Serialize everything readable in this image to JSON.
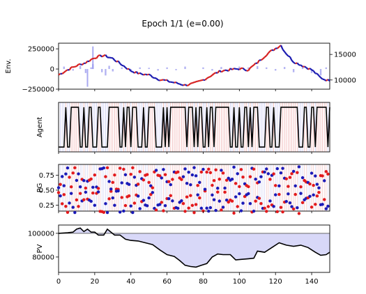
{
  "figure": {
    "title": "Epoch 1/1 (e=0.00)"
  },
  "chart_data": [
    {
      "type": "line",
      "panel": "env",
      "ylabel": "Env.",
      "xlim": [
        0,
        150
      ],
      "ylim": [
        -250000,
        320000
      ],
      "yticks": [
        {
          "v": 250000,
          "label": "250000"
        },
        {
          "v": 0,
          "label": "0"
        },
        {
          "v": -250000,
          "label": "−250000"
        }
      ],
      "secondary_axis": {
        "ylim": [
          8200,
          17200
        ],
        "yticks": [
          {
            "v": 15000,
            "label": "15000"
          },
          {
            "v": 10000,
            "label": "10000"
          }
        ],
        "price_series": [
          {
            "x": 0,
            "y": 11000
          },
          {
            "x": 5,
            "y": 12000
          },
          {
            "x": 10,
            "y": 12800
          },
          {
            "x": 15,
            "y": 13400
          },
          {
            "x": 20,
            "y": 14400
          },
          {
            "x": 25,
            "y": 14800
          },
          {
            "x": 30,
            "y": 14200
          },
          {
            "x": 35,
            "y": 13000
          },
          {
            "x": 40,
            "y": 11800
          },
          {
            "x": 45,
            "y": 11200
          },
          {
            "x": 50,
            "y": 11000
          },
          {
            "x": 55,
            "y": 10200
          },
          {
            "x": 60,
            "y": 9800
          },
          {
            "x": 65,
            "y": 9400
          },
          {
            "x": 70,
            "y": 9000
          },
          {
            "x": 75,
            "y": 9300
          },
          {
            "x": 80,
            "y": 10000
          },
          {
            "x": 85,
            "y": 11000
          },
          {
            "x": 90,
            "y": 11800
          },
          {
            "x": 95,
            "y": 12000
          },
          {
            "x": 100,
            "y": 12200
          },
          {
            "x": 105,
            "y": 12000
          },
          {
            "x": 110,
            "y": 13400
          },
          {
            "x": 115,
            "y": 15000
          },
          {
            "x": 120,
            "y": 16200
          },
          {
            "x": 123,
            "y": 16800
          },
          {
            "x": 125,
            "y": 15600
          },
          {
            "x": 130,
            "y": 13600
          },
          {
            "x": 135,
            "y": 12800
          },
          {
            "x": 140,
            "y": 12000
          },
          {
            "x": 145,
            "y": 10400
          },
          {
            "x": 150,
            "y": 9800
          }
        ]
      },
      "volume_bars": [
        {
          "x": 3,
          "v": 30000
        },
        {
          "x": 8,
          "v": -20000
        },
        {
          "x": 12,
          "v": 40000
        },
        {
          "x": 15,
          "v": -50000
        },
        {
          "x": 18,
          "v": 20000
        },
        {
          "x": 19,
          "v": 60000
        },
        {
          "x": 24,
          "v": -40000
        },
        {
          "x": 26,
          "v": -80000
        },
        {
          "x": 28,
          "v": 40000
        },
        {
          "x": 30,
          "v": -30000
        },
        {
          "x": 35,
          "v": 20000
        },
        {
          "x": 40,
          "v": -30000
        },
        {
          "x": 45,
          "v": 20000
        },
        {
          "x": 50,
          "v": 15000
        },
        {
          "x": 55,
          "v": -20000
        },
        {
          "x": 60,
          "v": 20000
        },
        {
          "x": 65,
          "v": -15000
        },
        {
          "x": 70,
          "v": 30000
        },
        {
          "x": 80,
          "v": 20000
        },
        {
          "x": 85,
          "v": -20000
        },
        {
          "x": 90,
          "v": 25000
        },
        {
          "x": 95,
          "v": 15000
        },
        {
          "x": 100,
          "v": 30000
        },
        {
          "x": 105,
          "v": 20000
        },
        {
          "x": 110,
          "v": 35000
        },
        {
          "x": 115,
          "v": 20000
        },
        {
          "x": 120,
          "v": -20000
        },
        {
          "x": 125,
          "v": 25000
        },
        {
          "x": 130,
          "v": -40000
        },
        {
          "x": 135,
          "v": 30000
        },
        {
          "x": 140,
          "v": -50000
        },
        {
          "x": 145,
          "v": -80000
        },
        {
          "x": 148,
          "v": 20000
        }
      ],
      "tall_bars": [
        {
          "x": 19,
          "v": 280000
        },
        {
          "x": 16,
          "v": -220000
        }
      ]
    },
    {
      "type": "line",
      "panel": "agent",
      "ylabel": "Agent",
      "xlim": [
        0,
        150
      ],
      "ylim": [
        -0.12,
        1.12
      ],
      "actions": [
        0,
        0,
        0,
        0,
        1,
        0,
        0,
        1,
        1,
        1,
        1,
        1,
        0,
        0,
        1,
        0,
        0,
        1,
        1,
        0,
        0,
        0,
        1,
        1,
        0,
        0,
        0,
        0,
        1,
        1,
        1,
        1,
        1,
        1,
        0,
        0,
        1,
        0,
        1,
        1,
        0,
        1,
        1,
        1,
        0,
        0,
        0,
        1,
        0,
        0,
        1,
        1,
        1,
        1,
        0,
        0,
        0,
        0,
        1,
        0,
        1,
        0,
        1,
        1,
        1,
        1,
        1,
        1,
        1,
        1,
        1,
        0,
        1,
        1,
        1,
        0,
        1,
        0,
        1,
        1,
        0,
        0,
        1,
        0,
        1,
        1,
        0,
        1,
        1,
        1,
        1,
        1,
        1,
        1,
        1,
        0,
        0,
        1,
        0,
        0,
        1,
        0,
        0,
        1,
        1,
        0,
        1,
        0,
        1,
        1,
        1,
        0,
        0,
        0,
        0,
        1,
        1,
        0,
        0,
        1,
        0,
        0,
        0,
        1,
        1,
        1,
        1,
        1,
        1,
        1,
        1,
        1,
        1,
        0,
        0,
        0,
        1,
        1,
        0,
        0,
        1,
        1,
        0,
        1,
        1,
        1,
        1,
        1,
        1,
        0,
        1
      ]
    },
    {
      "type": "scatter",
      "panel": "pg",
      "ylabel": "PG",
      "xlim": [
        0,
        150
      ],
      "ylim": [
        0.15,
        0.93
      ],
      "yticks": [
        {
          "v": 0.75,
          "label": "0.75"
        },
        {
          "v": 0.5,
          "label": "0.50"
        },
        {
          "v": 0.25,
          "label": "0.25"
        }
      ],
      "note": "each step shows a red point (p) and a blue point (1-p); values estimated from the plot"
    },
    {
      "type": "area",
      "panel": "pv",
      "ylabel": "PV",
      "xlim": [
        0,
        150
      ],
      "ylim": [
        67000,
        107000
      ],
      "baseline": 100000,
      "yticks": [
        {
          "v": 100000,
          "label": "100000"
        },
        {
          "v": 80000,
          "label": "80000"
        }
      ],
      "xticks": [
        0,
        20,
        40,
        60,
        80,
        100,
        120,
        140
      ],
      "values": [
        {
          "x": 0,
          "y": 100000
        },
        {
          "x": 5,
          "y": 100500
        },
        {
          "x": 8,
          "y": 101000
        },
        {
          "x": 10,
          "y": 103500
        },
        {
          "x": 12,
          "y": 104500
        },
        {
          "x": 14,
          "y": 101500
        },
        {
          "x": 16,
          "y": 103500
        },
        {
          "x": 18,
          "y": 101000
        },
        {
          "x": 20,
          "y": 101000
        },
        {
          "x": 22,
          "y": 98500
        },
        {
          "x": 25,
          "y": 98500
        },
        {
          "x": 27,
          "y": 103500
        },
        {
          "x": 29,
          "y": 101000
        },
        {
          "x": 31,
          "y": 98500
        },
        {
          "x": 34,
          "y": 98500
        },
        {
          "x": 37,
          "y": 95000
        },
        {
          "x": 40,
          "y": 94000
        },
        {
          "x": 44,
          "y": 93500
        },
        {
          "x": 48,
          "y": 92000
        },
        {
          "x": 52,
          "y": 90500
        },
        {
          "x": 56,
          "y": 86000
        },
        {
          "x": 60,
          "y": 82000
        },
        {
          "x": 64,
          "y": 80500
        },
        {
          "x": 67,
          "y": 77000
        },
        {
          "x": 70,
          "y": 73000
        },
        {
          "x": 73,
          "y": 72000
        },
        {
          "x": 76,
          "y": 71500
        },
        {
          "x": 79,
          "y": 73000
        },
        {
          "x": 82,
          "y": 74500
        },
        {
          "x": 85,
          "y": 80000
        },
        {
          "x": 88,
          "y": 82500
        },
        {
          "x": 91,
          "y": 82000
        },
        {
          "x": 95,
          "y": 82000
        },
        {
          "x": 98,
          "y": 77500
        },
        {
          "x": 101,
          "y": 78000
        },
        {
          "x": 105,
          "y": 78500
        },
        {
          "x": 108,
          "y": 79000
        },
        {
          "x": 110,
          "y": 85000
        },
        {
          "x": 114,
          "y": 84000
        },
        {
          "x": 118,
          "y": 88000
        },
        {
          "x": 122,
          "y": 92000
        },
        {
          "x": 126,
          "y": 90000
        },
        {
          "x": 130,
          "y": 89000
        },
        {
          "x": 134,
          "y": 90000
        },
        {
          "x": 138,
          "y": 88000
        },
        {
          "x": 142,
          "y": 84000
        },
        {
          "x": 145,
          "y": 81500
        },
        {
          "x": 148,
          "y": 82000
        },
        {
          "x": 150,
          "y": 84000
        }
      ]
    }
  ]
}
